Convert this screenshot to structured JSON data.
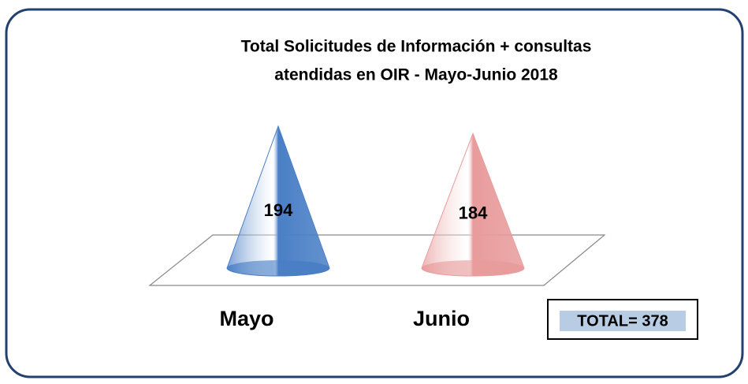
{
  "chart_data": {
    "type": "cone",
    "title": [
      "Total Solicitudes  de Información + consultas",
      "atendidas en OIR  -  Mayo-Junio 2018"
    ],
    "categories": [
      "Mayo",
      "Junio"
    ],
    "values": [
      194,
      184
    ],
    "colors": [
      "#4a7fc6",
      "#e89c9c"
    ],
    "annotation": "TOTAL= 378"
  }
}
